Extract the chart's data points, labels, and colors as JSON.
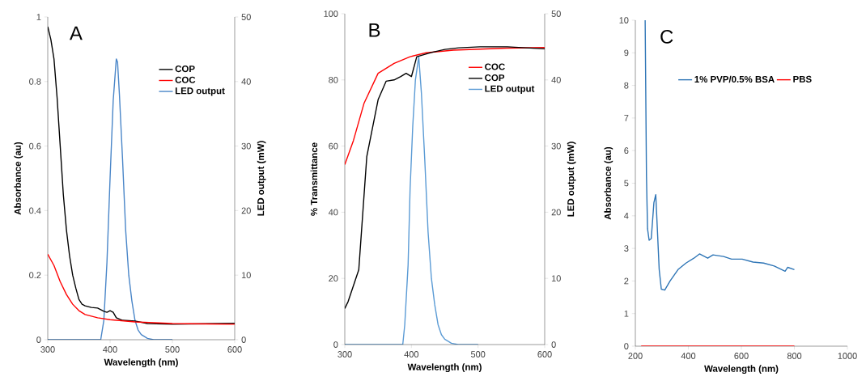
{
  "chart_data": [
    {
      "type": "line",
      "xlabel": "Wavelength (nm)",
      "ylabel": "Absorbance (au)",
      "y2label": "LED output (mW)",
      "annotations": [
        "A"
      ],
      "legend": "top right",
      "xlim": [
        300,
        600
      ],
      "xticks": [
        300,
        400,
        500,
        600
      ],
      "ylim": [
        0,
        1
      ],
      "yticks": [
        0,
        0.2,
        0.4,
        0.6,
        0.8,
        1
      ],
      "y2lim": [
        0,
        50
      ],
      "y2ticks": [
        0,
        10,
        20,
        30,
        40,
        50
      ],
      "series": [
        {
          "name": "COP",
          "color": "#000000",
          "x": [
            300,
            305,
            310,
            315,
            320,
            325,
            330,
            335,
            340,
            345,
            350,
            355,
            360,
            370,
            380,
            390,
            395,
            400,
            405,
            410,
            420,
            440,
            460,
            500,
            600
          ],
          "values": [
            0.97,
            0.93,
            0.87,
            0.75,
            0.6,
            0.45,
            0.34,
            0.26,
            0.2,
            0.16,
            0.125,
            0.11,
            0.105,
            0.1,
            0.098,
            0.088,
            0.085,
            0.09,
            0.085,
            0.068,
            0.06,
            0.058,
            0.05,
            0.048,
            0.051
          ]
        },
        {
          "name": "COC",
          "color": "#ff0000",
          "x": [
            300,
            310,
            320,
            330,
            340,
            350,
            360,
            380,
            400,
            440,
            500,
            600
          ],
          "values": [
            0.265,
            0.23,
            0.18,
            0.14,
            0.11,
            0.09,
            0.078,
            0.068,
            0.062,
            0.055,
            0.05,
            0.048
          ]
        },
        {
          "name": "LED output",
          "color": "#4a86c8",
          "axis": "y2",
          "x": [
            300,
            385,
            390,
            395,
            400,
            405,
            410,
            412,
            415,
            420,
            425,
            430,
            435,
            440,
            445,
            450,
            460,
            470,
            500
          ],
          "values": [
            0,
            0,
            3,
            12,
            25,
            37,
            43.5,
            43,
            38,
            28,
            17,
            10,
            6,
            3,
            1.5,
            0.8,
            0.2,
            0,
            0
          ]
        }
      ]
    },
    {
      "type": "line",
      "xlabel": "Wavelength (nm)",
      "ylabel": "% Transmittance",
      "y2label": "LED output (mW)",
      "annotations": [
        "B"
      ],
      "legend": "top right",
      "xlim": [
        300,
        600
      ],
      "xticks": [
        300,
        400,
        500,
        600
      ],
      "ylim": [
        0,
        100
      ],
      "yticks": [
        0,
        20,
        40,
        60,
        80,
        100
      ],
      "y2lim": [
        0,
        50
      ],
      "y2ticks": [
        0,
        10,
        20,
        30,
        40,
        50
      ],
      "series": [
        {
          "name": "COC",
          "color": "#ff0000",
          "x": [
            300,
            313,
            329,
            350,
            374,
            398,
            422,
            463,
            543,
            600
          ],
          "values": [
            54.4,
            61.7,
            73,
            82,
            85,
            87,
            88.2,
            89,
            89.6,
            89.8
          ]
        },
        {
          "name": "COP",
          "color": "#000000",
          "x": [
            300,
            305,
            310,
            315,
            321,
            333,
            350,
            362,
            374,
            384,
            392,
            400,
            408,
            430,
            450,
            471,
            503,
            544,
            600
          ],
          "values": [
            10.9,
            13,
            16,
            19,
            22.6,
            56.8,
            74,
            79.6,
            80,
            81,
            82,
            81,
            87,
            88.3,
            89.2,
            89.7,
            90,
            90,
            89.4
          ]
        },
        {
          "name": "LED output",
          "color": "#5b9bd5",
          "axis": "y2",
          "x": [
            300,
            387,
            390,
            395,
            398,
            402,
            406,
            411,
            415,
            420,
            425,
            430,
            435,
            440,
            445,
            450,
            460,
            470,
            500
          ],
          "values": [
            0,
            0,
            3,
            12,
            23.5,
            33,
            40,
            43.5,
            38,
            28,
            17,
            10,
            6,
            3,
            1.5,
            0.8,
            0.2,
            0,
            0
          ]
        }
      ]
    },
    {
      "type": "line",
      "xlabel": "Wavelength (nm)",
      "ylabel": "Absorbance (au)",
      "annotations": [
        "C"
      ],
      "legend": "top",
      "xlim": [
        200,
        1000
      ],
      "xticks": [
        200,
        400,
        600,
        800,
        1000
      ],
      "ylim": [
        0,
        10
      ],
      "yticks": [
        0,
        1,
        2,
        3,
        4,
        5,
        6,
        7,
        8,
        9,
        10
      ],
      "series": [
        {
          "name": "1% PVP/0.5% BSA",
          "color": "#2e75b6",
          "x": [
            237,
            242,
            246,
            252,
            260,
            270,
            277,
            283,
            290,
            298,
            311,
            331,
            361,
            391,
            421,
            442,
            473,
            493,
            533,
            563,
            603,
            644,
            684,
            724,
            765,
            775,
            800
          ],
          "values": [
            10,
            5.2,
            3.6,
            3.25,
            3.3,
            4.4,
            4.65,
            3.6,
            2.35,
            1.75,
            1.72,
            2.0,
            2.35,
            2.55,
            2.7,
            2.83,
            2.7,
            2.8,
            2.75,
            2.67,
            2.67,
            2.58,
            2.55,
            2.46,
            2.3,
            2.42,
            2.35
          ]
        },
        {
          "name": "PBS",
          "color": "#ff0000",
          "x": [
            222,
            800
          ],
          "values": [
            0,
            0
          ]
        }
      ]
    }
  ]
}
